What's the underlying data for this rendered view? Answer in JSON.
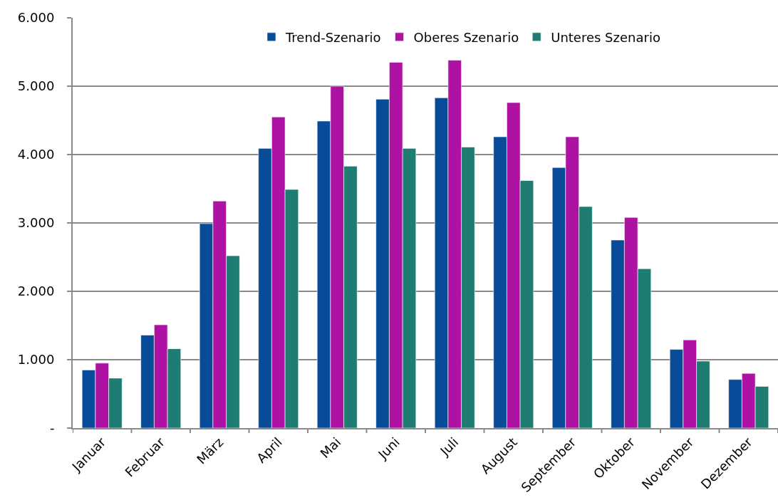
{
  "chart_data": {
    "type": "bar",
    "categories": [
      "Januar",
      "Februar",
      "März",
      "April",
      "Mai",
      "Juni",
      "Juli",
      "August",
      "September",
      "Oktober",
      "November",
      "Dezember"
    ],
    "series": [
      {
        "name": "Trend-Szenario",
        "color": "#084b99",
        "values": [
          850,
          1360,
          2990,
          4090,
          4490,
          4810,
          4830,
          4260,
          3810,
          2750,
          1150,
          710
        ]
      },
      {
        "name": "Oberes Szenario",
        "color": "#ad12a3",
        "values": [
          950,
          1510,
          3320,
          4550,
          5000,
          5350,
          5380,
          4760,
          4260,
          3080,
          1290,
          800
        ]
      },
      {
        "name": "Unteres Szenario",
        "color": "#1f7c72",
        "values": [
          730,
          1160,
          2520,
          3490,
          3830,
          4090,
          4110,
          3620,
          3240,
          2330,
          980,
          610
        ]
      }
    ],
    "ylim": [
      0,
      6000
    ],
    "yticks": [
      {
        "value": 0,
        "label": "-"
      },
      {
        "value": 1000,
        "label": "1.000"
      },
      {
        "value": 2000,
        "label": "2.000"
      },
      {
        "value": 3000,
        "label": "3.000"
      },
      {
        "value": 4000,
        "label": "4.000"
      },
      {
        "value": 5000,
        "label": "5.000"
      },
      {
        "value": 6000,
        "label": "6.000"
      }
    ],
    "grid": "y",
    "legend": "top"
  }
}
